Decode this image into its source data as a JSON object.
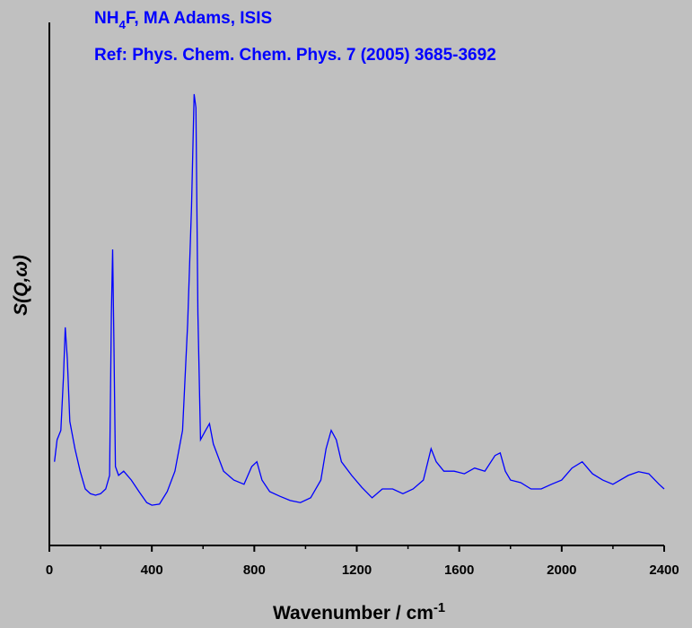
{
  "chart_data": {
    "type": "line",
    "title": "NH4F, MA Adams, ISIS",
    "subtitle": "Ref: Phys. Chem. Chem. Phys. 7 (2005) 3685-3692",
    "x_label": "Wavenumber / cm-1",
    "y_label": "S(Q,ω)",
    "x": [
      20,
      30,
      45,
      55,
      62,
      70,
      80,
      100,
      120,
      140,
      160,
      180,
      200,
      220,
      235,
      242,
      247,
      252,
      258,
      270,
      290,
      320,
      350,
      380,
      400,
      430,
      460,
      490,
      520,
      540,
      555,
      565,
      572,
      580,
      590,
      610,
      625,
      640,
      680,
      720,
      760,
      790,
      810,
      830,
      860,
      900,
      940,
      980,
      1020,
      1060,
      1080,
      1100,
      1120,
      1140,
      1180,
      1220,
      1260,
      1300,
      1340,
      1380,
      1420,
      1460,
      1490,
      1510,
      1540,
      1580,
      1620,
      1660,
      1700,
      1740,
      1760,
      1780,
      1800,
      1840,
      1880,
      1920,
      1960,
      2000,
      2040,
      2080,
      2120,
      2160,
      2200,
      2260,
      2300,
      2340,
      2380,
      2400
    ],
    "series": [
      {
        "color": "#0000ff",
        "values": [
          16.0,
          20.2,
          22.0,
          32.2,
          41.7,
          35.7,
          23.7,
          18.5,
          14.2,
          10.8,
          9.9,
          9.6,
          9.9,
          10.8,
          13.4,
          44.3,
          56.6,
          39.1,
          15.1,
          13.4,
          14.2,
          12.5,
          10.3,
          8.2,
          7.7,
          7.9,
          10.3,
          14.2,
          22.0,
          42.5,
          64.8,
          86.3,
          83.7,
          44.3,
          20.2,
          22.0,
          23.3,
          19.4,
          14.2,
          12.5,
          11.7,
          15.1,
          16.0,
          12.5,
          10.3,
          9.4,
          8.6,
          8.2,
          9.1,
          12.5,
          18.5,
          22.0,
          20.2,
          16.0,
          13.4,
          11.1,
          9.1,
          10.8,
          10.8,
          9.9,
          10.8,
          12.5,
          18.5,
          16.0,
          14.2,
          14.2,
          13.7,
          14.8,
          14.2,
          17.2,
          17.7,
          14.2,
          12.5,
          12.0,
          10.8,
          10.8,
          11.7,
          12.5,
          14.8,
          16.0,
          13.7,
          12.5,
          11.7,
          13.4,
          14.1,
          13.7,
          11.7,
          10.8
        ]
      }
    ],
    "xlim": [
      0,
      2400
    ],
    "xticks": [
      0,
      400,
      800,
      1200,
      1600,
      2000,
      2400
    ],
    "xminor_ticks": [
      200,
      600,
      1000,
      1400,
      1800,
      2200
    ],
    "ylim": [
      0,
      100
    ]
  }
}
